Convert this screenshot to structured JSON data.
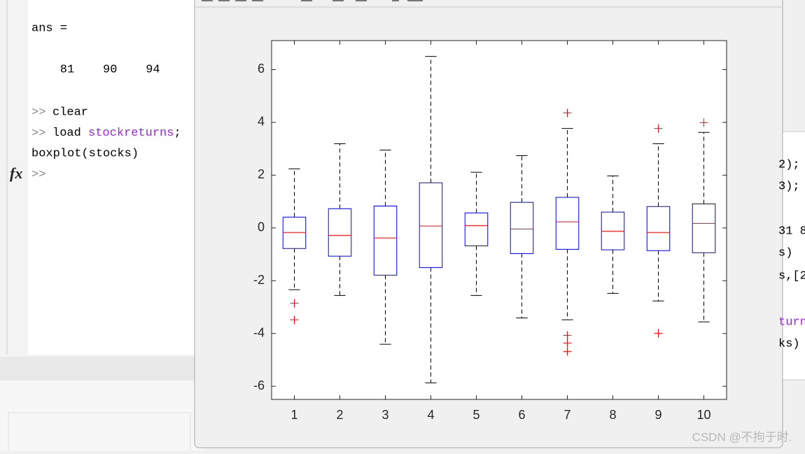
{
  "console": {
    "lines": [
      {
        "text": "ans ="
      },
      {
        "text": "    81    90    94"
      },
      {
        "prompt": ">>",
        "text": "clear"
      },
      {
        "prompt": ">>",
        "parts": [
          "load ",
          "stockreturns",
          ";"
        ]
      },
      {
        "text": "boxplot(stocks)"
      },
      {
        "prompt": ">>"
      }
    ],
    "fx": "fx"
  },
  "background_text": [
    "2);",
    "3);",
    "31 8",
    "s)",
    "s,[2",
    "turn",
    "ks)"
  ],
  "watermark": "CSDN @不拘于时.",
  "chart_data": {
    "type": "box",
    "categories": [
      "1",
      "2",
      "3",
      "4",
      "5",
      "6",
      "7",
      "8",
      "9",
      "10"
    ],
    "boxes": [
      {
        "whisker_low": -2.34,
        "q1": -0.78,
        "median": -0.17,
        "q3": 0.41,
        "whisker_high": 2.24,
        "outliers": [
          -2.85,
          -3.48
        ]
      },
      {
        "whisker_low": -2.56,
        "q1": -1.07,
        "median": -0.28,
        "q3": 0.73,
        "whisker_high": 3.19,
        "outliers": []
      },
      {
        "whisker_low": -4.41,
        "q1": -1.79,
        "median": -0.38,
        "q3": 0.83,
        "whisker_high": 2.95,
        "outliers": []
      },
      {
        "whisker_low": -5.87,
        "q1": -1.5,
        "median": 0.07,
        "q3": 1.71,
        "whisker_high": 6.5,
        "outliers": []
      },
      {
        "whisker_low": -2.56,
        "q1": -0.68,
        "median": 0.09,
        "q3": 0.57,
        "whisker_high": 2.11,
        "outliers": []
      },
      {
        "whisker_low": -3.41,
        "q1": -0.97,
        "median": -0.04,
        "q3": 0.97,
        "whisker_high": 2.74,
        "outliers": []
      },
      {
        "whisker_low": -3.48,
        "q1": -0.81,
        "median": 0.23,
        "q3": 1.16,
        "whisker_high": 3.77,
        "outliers": [
          4.36,
          -4.07,
          -4.36,
          -4.68
        ]
      },
      {
        "whisker_low": -2.48,
        "q1": -0.83,
        "median": -0.12,
        "q3": 0.6,
        "whisker_high": 1.97,
        "outliers": []
      },
      {
        "whisker_low": -2.77,
        "q1": -0.86,
        "median": -0.17,
        "q3": 0.81,
        "whisker_high": 3.19,
        "outliers": [
          3.77,
          -3.99
        ]
      },
      {
        "whisker_low": -3.56,
        "q1": -0.94,
        "median": 0.17,
        "q3": 0.91,
        "whisker_high": 3.62,
        "outliers": [
          3.99
        ]
      }
    ],
    "ylim": [
      -6.5,
      7.1
    ],
    "yticks": [
      -6,
      -4,
      -2,
      0,
      2,
      4,
      6
    ],
    "box_color": "#0000ff",
    "median_color": "#ff0000",
    "whisker_color": "#000000",
    "outlier_color": "#ff0000"
  }
}
